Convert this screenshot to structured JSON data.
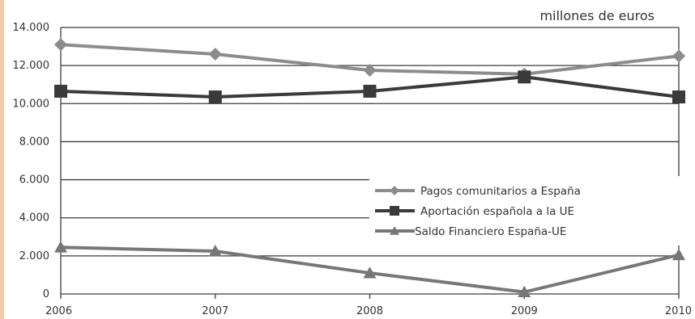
{
  "chart_data": {
    "type": "line",
    "title": "",
    "unit_label": "millones de euros",
    "x": [
      "2006",
      "2007",
      "2008",
      "2009",
      "2010"
    ],
    "y_ticks": [
      "0",
      "2.000",
      "4.000",
      "6.000",
      "8.000",
      "10.000",
      "12.000",
      "14.000"
    ],
    "ylim": [
      0,
      14000
    ],
    "grid": true,
    "legend_position": "center-right",
    "series": [
      {
        "name": "Pagos comunitarios a España",
        "values": [
          13100,
          12600,
          11750,
          11550,
          12500
        ],
        "color": "#8c8c8c",
        "marker": "diamond"
      },
      {
        "name": "Aportación española a la UE",
        "values": [
          10650,
          10350,
          10650,
          11400,
          10350
        ],
        "color": "#3a3a3a",
        "marker": "square"
      },
      {
        "name": "Saldo Financiero España-UE",
        "values": [
          2450,
          2250,
          1100,
          100,
          2050
        ],
        "color": "#777777",
        "marker": "triangle"
      }
    ],
    "accent_strip_color": "#f6c9a6"
  }
}
